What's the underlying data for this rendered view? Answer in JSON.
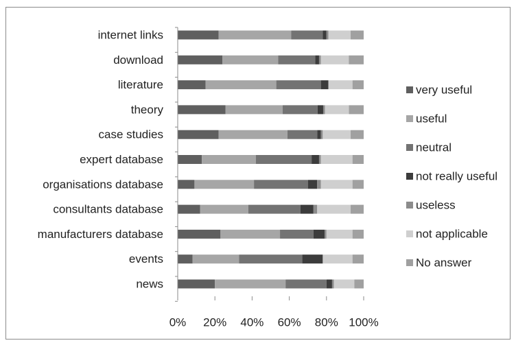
{
  "chart_data": {
    "type": "bar",
    "orientation": "horizontal",
    "stacked": "percent",
    "categories": [
      "internet links",
      "download",
      "literature",
      "theory",
      "case studies",
      "expert database",
      "organisations database",
      "consultants database",
      "manufacturers database",
      "events",
      "news"
    ],
    "series": [
      {
        "name": "very useful",
        "color": "#5f5f5f",
        "values": [
          22,
          24,
          15,
          26,
          22,
          13,
          9,
          12,
          23,
          8,
          20
        ]
      },
      {
        "name": "useful",
        "color": "#a6a6a6",
        "values": [
          39,
          30,
          38,
          31,
          37,
          29,
          32,
          26,
          32,
          25,
          38
        ]
      },
      {
        "name": "neutral",
        "color": "#737373",
        "values": [
          17,
          20,
          24,
          19,
          16,
          30,
          29,
          28,
          18,
          34,
          22
        ]
      },
      {
        "name": "not really useful",
        "color": "#3c3c3c",
        "values": [
          2,
          2,
          4,
          3,
          2,
          4,
          5,
          7,
          6,
          11,
          3
        ]
      },
      {
        "name": "useless",
        "color": "#8c8c8c",
        "values": [
          1,
          1,
          0,
          1,
          1,
          1,
          2,
          2,
          1,
          0,
          1
        ]
      },
      {
        "name": "not applicable",
        "color": "#cfcfcf",
        "values": [
          12,
          15,
          13,
          13,
          15,
          17,
          17,
          18,
          14,
          16,
          11
        ]
      },
      {
        "name": "No answer",
        "color": "#a0a0a0",
        "values": [
          7,
          8,
          6,
          8,
          7,
          6,
          6,
          7,
          6,
          6,
          5
        ]
      }
    ],
    "xticks": [
      "0%",
      "20%",
      "40%",
      "60%",
      "80%",
      "100%"
    ],
    "xlim": [
      0,
      100
    ],
    "legend": "right",
    "grid": false
  }
}
